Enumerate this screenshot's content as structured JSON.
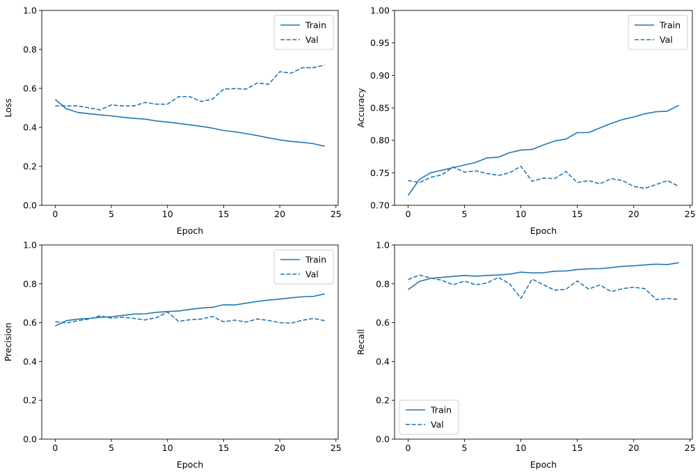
{
  "chart_data": [
    {
      "type": "line",
      "xlabel": "Epoch",
      "ylabel": "Loss",
      "xlim": [
        -1.2,
        25.2
      ],
      "ylim": [
        0,
        1
      ],
      "xticks": [
        0,
        5,
        10,
        15,
        20,
        25
      ],
      "yticks": [
        0.0,
        0.2,
        0.4,
        0.6,
        0.8,
        1.0
      ],
      "ytick_labels": [
        "0.0",
        "0.2",
        "0.4",
        "0.6",
        "0.8",
        "1.0"
      ],
      "legend_position": "top-right",
      "series": [
        {
          "name": "Train",
          "style": "solid",
          "color": "#1f77b4",
          "x": [
            0,
            1,
            2,
            3,
            4,
            5,
            6,
            7,
            8,
            9,
            10,
            11,
            12,
            13,
            14,
            15,
            16,
            17,
            18,
            19,
            20,
            21,
            22,
            23,
            24
          ],
          "values": [
            0.543,
            0.495,
            0.477,
            0.47,
            0.464,
            0.459,
            0.452,
            0.446,
            0.442,
            0.433,
            0.427,
            0.42,
            0.413,
            0.405,
            0.396,
            0.384,
            0.377,
            0.368,
            0.358,
            0.346,
            0.336,
            0.328,
            0.323,
            0.316,
            0.303
          ]
        },
        {
          "name": "Val",
          "style": "dashed",
          "color": "#1f77b4",
          "x": [
            0,
            1,
            2,
            3,
            4,
            5,
            6,
            7,
            8,
            9,
            10,
            11,
            12,
            13,
            14,
            15,
            16,
            17,
            18,
            19,
            20,
            21,
            22,
            23,
            24
          ],
          "values": [
            0.51,
            0.51,
            0.51,
            0.5,
            0.49,
            0.515,
            0.51,
            0.51,
            0.528,
            0.519,
            0.519,
            0.558,
            0.557,
            0.533,
            0.545,
            0.596,
            0.599,
            0.596,
            0.628,
            0.621,
            0.686,
            0.678,
            0.706,
            0.706,
            0.72
          ]
        }
      ]
    },
    {
      "type": "line",
      "xlabel": "Epoch",
      "ylabel": "Accuracy",
      "xlim": [
        -1.2,
        25.2
      ],
      "ylim": [
        0.7,
        1.0
      ],
      "xticks": [
        0,
        5,
        10,
        15,
        20,
        25
      ],
      "yticks": [
        0.7,
        0.75,
        0.8,
        0.85,
        0.9,
        0.95,
        1.0
      ],
      "ytick_labels": [
        "0.70",
        "0.75",
        "0.80",
        "0.85",
        "0.90",
        "0.95",
        "1.00"
      ],
      "legend_position": "top-right",
      "series": [
        {
          "name": "Train",
          "style": "solid",
          "color": "#1f77b4",
          "x": [
            0,
            1,
            2,
            3,
            4,
            5,
            6,
            7,
            8,
            9,
            10,
            11,
            12,
            13,
            14,
            15,
            16,
            17,
            18,
            19,
            20,
            21,
            22,
            23,
            24
          ],
          "values": [
            0.715,
            0.74,
            0.75,
            0.754,
            0.758,
            0.762,
            0.766,
            0.773,
            0.774,
            0.781,
            0.785,
            0.786,
            0.793,
            0.799,
            0.802,
            0.812,
            0.812,
            0.819,
            0.826,
            0.832,
            0.836,
            0.841,
            0.844,
            0.845,
            0.854
          ]
        },
        {
          "name": "Val",
          "style": "dashed",
          "color": "#1f77b4",
          "x": [
            0,
            1,
            2,
            3,
            4,
            5,
            6,
            7,
            8,
            9,
            10,
            11,
            12,
            13,
            14,
            15,
            16,
            17,
            18,
            19,
            20,
            21,
            22,
            23,
            24
          ],
          "values": [
            0.738,
            0.735,
            0.743,
            0.747,
            0.759,
            0.751,
            0.753,
            0.749,
            0.746,
            0.75,
            0.76,
            0.737,
            0.742,
            0.741,
            0.752,
            0.735,
            0.738,
            0.733,
            0.741,
            0.738,
            0.729,
            0.726,
            0.732,
            0.738,
            0.729
          ]
        }
      ]
    },
    {
      "type": "line",
      "xlabel": "Epoch",
      "ylabel": "Precision",
      "xlim": [
        -1.2,
        25.2
      ],
      "ylim": [
        0,
        1
      ],
      "xticks": [
        0,
        5,
        10,
        15,
        20,
        25
      ],
      "yticks": [
        0.0,
        0.2,
        0.4,
        0.6,
        0.8,
        1.0
      ],
      "ytick_labels": [
        "0.0",
        "0.2",
        "0.4",
        "0.6",
        "0.8",
        "1.0"
      ],
      "legend_position": "top-right",
      "series": [
        {
          "name": "Train",
          "style": "solid",
          "color": "#1f77b4",
          "x": [
            0,
            1,
            2,
            3,
            4,
            5,
            6,
            7,
            8,
            9,
            10,
            11,
            12,
            13,
            14,
            15,
            16,
            17,
            18,
            19,
            20,
            21,
            22,
            23,
            24
          ],
          "values": [
            0.583,
            0.61,
            0.618,
            0.622,
            0.627,
            0.631,
            0.637,
            0.644,
            0.645,
            0.653,
            0.657,
            0.66,
            0.668,
            0.675,
            0.679,
            0.692,
            0.691,
            0.7,
            0.709,
            0.716,
            0.721,
            0.728,
            0.733,
            0.735,
            0.748
          ]
        },
        {
          "name": "Val",
          "style": "dashed",
          "color": "#1f77b4",
          "x": [
            0,
            1,
            2,
            3,
            4,
            5,
            6,
            7,
            8,
            9,
            10,
            11,
            12,
            13,
            14,
            15,
            16,
            17,
            18,
            19,
            20,
            21,
            22,
            23,
            24
          ],
          "values": [
            0.605,
            0.598,
            0.61,
            0.618,
            0.635,
            0.623,
            0.628,
            0.622,
            0.614,
            0.625,
            0.655,
            0.606,
            0.615,
            0.618,
            0.632,
            0.604,
            0.613,
            0.603,
            0.619,
            0.611,
            0.6,
            0.597,
            0.612,
            0.622,
            0.61
          ]
        }
      ]
    },
    {
      "type": "line",
      "xlabel": "Epoch",
      "ylabel": "Recall",
      "xlim": [
        -1.2,
        25.2
      ],
      "ylim": [
        0,
        1
      ],
      "xticks": [
        0,
        5,
        10,
        15,
        20,
        25
      ],
      "yticks": [
        0.0,
        0.2,
        0.4,
        0.6,
        0.8,
        1.0
      ],
      "ytick_labels": [
        "0.0",
        "0.2",
        "0.4",
        "0.6",
        "0.8",
        "1.0"
      ],
      "legend_position": "bottom-left",
      "series": [
        {
          "name": "Train",
          "style": "solid",
          "color": "#1f77b4",
          "x": [
            0,
            1,
            2,
            3,
            4,
            5,
            6,
            7,
            8,
            9,
            10,
            11,
            12,
            13,
            14,
            15,
            16,
            17,
            18,
            19,
            20,
            21,
            22,
            23,
            24
          ],
          "values": [
            0.77,
            0.812,
            0.828,
            0.833,
            0.838,
            0.843,
            0.839,
            0.843,
            0.845,
            0.85,
            0.86,
            0.856,
            0.857,
            0.865,
            0.866,
            0.873,
            0.877,
            0.878,
            0.883,
            0.89,
            0.893,
            0.897,
            0.901,
            0.899,
            0.909
          ]
        },
        {
          "name": "Val",
          "style": "dashed",
          "color": "#1f77b4",
          "x": [
            0,
            1,
            2,
            3,
            4,
            5,
            6,
            7,
            8,
            9,
            10,
            11,
            12,
            13,
            14,
            15,
            16,
            17,
            18,
            19,
            20,
            21,
            22,
            23,
            24
          ],
          "values": [
            0.822,
            0.845,
            0.83,
            0.818,
            0.795,
            0.814,
            0.795,
            0.804,
            0.833,
            0.8,
            0.725,
            0.824,
            0.795,
            0.767,
            0.772,
            0.815,
            0.773,
            0.794,
            0.76,
            0.775,
            0.782,
            0.775,
            0.719,
            0.724,
            0.72
          ]
        }
      ]
    }
  ]
}
